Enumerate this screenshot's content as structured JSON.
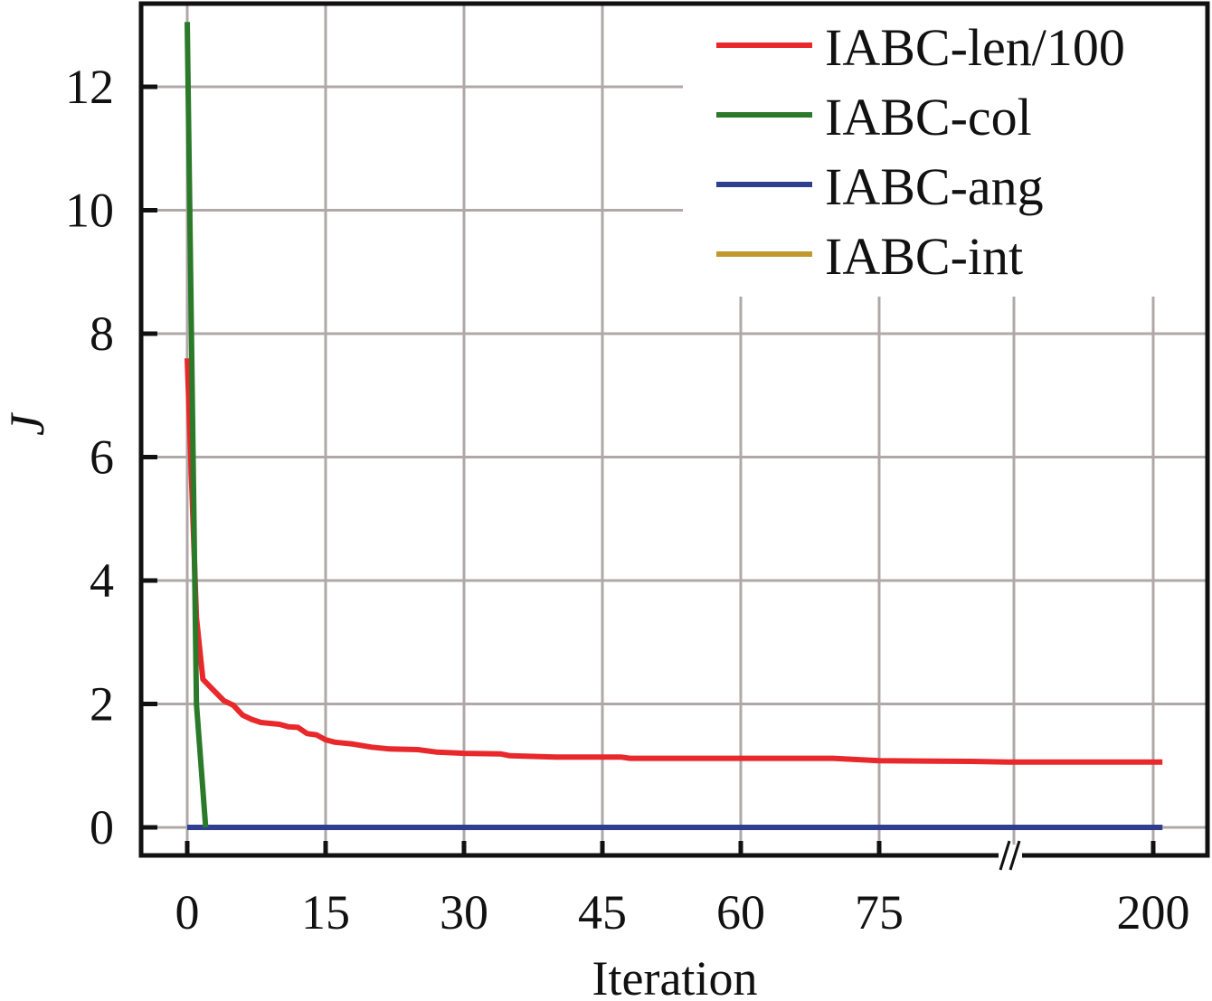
{
  "chart_data": {
    "type": "line",
    "title": "",
    "xlabel": "Iteration",
    "ylabel": "J",
    "ylim": [
      0,
      13.2
    ],
    "yticks": [
      0,
      2,
      4,
      6,
      8,
      10,
      12
    ],
    "xticks": [
      0,
      15,
      30,
      45,
      60,
      75,
      200
    ],
    "xaxis_break": [
      89,
      191
    ],
    "grid": true,
    "legend_position": "top-right",
    "series": [
      {
        "name": "IABC-len/100",
        "color": "#e8282a",
        "points": [
          [
            0,
            7.6
          ],
          [
            1,
            3.4
          ],
          [
            1.7,
            2.4
          ],
          [
            3,
            2.2
          ],
          [
            4,
            2.05
          ],
          [
            5,
            1.98
          ],
          [
            6,
            1.82
          ],
          [
            7,
            1.75
          ],
          [
            8,
            1.7
          ],
          [
            10,
            1.67
          ],
          [
            11,
            1.63
          ],
          [
            12,
            1.62
          ],
          [
            13,
            1.52
          ],
          [
            14,
            1.5
          ],
          [
            15,
            1.42
          ],
          [
            16,
            1.38
          ],
          [
            18,
            1.35
          ],
          [
            20,
            1.3
          ],
          [
            22,
            1.27
          ],
          [
            25,
            1.26
          ],
          [
            27,
            1.22
          ],
          [
            30,
            1.2
          ],
          [
            34,
            1.19
          ],
          [
            35,
            1.16
          ],
          [
            40,
            1.14
          ],
          [
            47,
            1.14
          ],
          [
            48,
            1.12
          ],
          [
            60,
            1.12
          ],
          [
            70,
            1.12
          ],
          [
            75,
            1.08
          ],
          [
            85,
            1.07
          ],
          [
            89,
            1.06
          ],
          [
            191,
            1.06
          ],
          [
            201,
            1.06
          ]
        ]
      },
      {
        "name": "IABC-col",
        "color": "#2a7a2a",
        "points": [
          [
            0,
            13.05
          ],
          [
            1,
            2
          ],
          [
            2,
            0
          ]
        ]
      },
      {
        "name": "IABC-ang",
        "color": "#2e3f8f",
        "points": [
          [
            0,
            0
          ],
          [
            201,
            0
          ]
        ]
      },
      {
        "name": "IABC-int",
        "color": "#c0982e",
        "points": [
          [
            0,
            0
          ],
          [
            201,
            0
          ]
        ]
      }
    ]
  }
}
